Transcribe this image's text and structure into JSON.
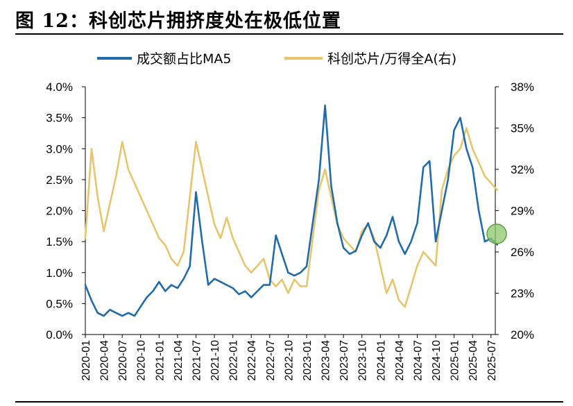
{
  "figure": {
    "title": "图 12：科创芯片拥挤度处在极低位置"
  },
  "chart_data": {
    "type": "line",
    "legend_position": "top",
    "grid": false,
    "x_ticks": [
      "2020-01",
      "2020-04",
      "2020-07",
      "2020-10",
      "2021-01",
      "2021-04",
      "2021-07",
      "2021-10",
      "2022-01",
      "2022-04",
      "2022-07",
      "2022-10",
      "2023-01",
      "2023-04",
      "2023-07",
      "2023-10",
      "2024-01",
      "2024-04",
      "2024-07",
      "2024-10",
      "2025-01",
      "2025-04",
      "2025-07"
    ],
    "y_left": {
      "ylim": [
        0.0,
        4.0
      ],
      "ticks": [
        "0.0%",
        "0.5%",
        "1.0%",
        "1.5%",
        "2.0%",
        "2.5%",
        "3.0%",
        "3.5%",
        "4.0%"
      ]
    },
    "y_right": {
      "ylim": [
        20,
        38
      ],
      "ticks": [
        "20%",
        "23%",
        "26%",
        "29%",
        "32%",
        "35%",
        "38%"
      ]
    },
    "series": [
      {
        "name": "成交额占比MA5",
        "axis": "left",
        "color": "#1f6bac",
        "points": [
          [
            "2020-01",
            0.8
          ],
          [
            "2020-02",
            0.55
          ],
          [
            "2020-03",
            0.35
          ],
          [
            "2020-04",
            0.3
          ],
          [
            "2020-05",
            0.4
          ],
          [
            "2020-06",
            0.35
          ],
          [
            "2020-07",
            0.3
          ],
          [
            "2020-08",
            0.35
          ],
          [
            "2020-09",
            0.3
          ],
          [
            "2020-10",
            0.45
          ],
          [
            "2020-11",
            0.6
          ],
          [
            "2020-12",
            0.7
          ],
          [
            "2021-01",
            0.85
          ],
          [
            "2021-02",
            0.7
          ],
          [
            "2021-03",
            0.8
          ],
          [
            "2021-04",
            0.75
          ],
          [
            "2021-05",
            0.9
          ],
          [
            "2021-06",
            1.1
          ],
          [
            "2021-07",
            2.3
          ],
          [
            "2021-08",
            1.5
          ],
          [
            "2021-09",
            0.8
          ],
          [
            "2021-10",
            0.9
          ],
          [
            "2021-11",
            0.85
          ],
          [
            "2021-12",
            0.8
          ],
          [
            "2022-01",
            0.75
          ],
          [
            "2022-02",
            0.65
          ],
          [
            "2022-03",
            0.7
          ],
          [
            "2022-04",
            0.6
          ],
          [
            "2022-05",
            0.7
          ],
          [
            "2022-06",
            0.8
          ],
          [
            "2022-07",
            0.8
          ],
          [
            "2022-08",
            1.6
          ],
          [
            "2022-09",
            1.3
          ],
          [
            "2022-10",
            1.0
          ],
          [
            "2022-11",
            0.95
          ],
          [
            "2022-12",
            1.0
          ],
          [
            "2023-01",
            1.1
          ],
          [
            "2023-02",
            1.8
          ],
          [
            "2023-03",
            2.5
          ],
          [
            "2023-04",
            3.7
          ],
          [
            "2023-05",
            2.4
          ],
          [
            "2023-06",
            1.8
          ],
          [
            "2023-07",
            1.4
          ],
          [
            "2023-08",
            1.3
          ],
          [
            "2023-09",
            1.35
          ],
          [
            "2023-10",
            1.6
          ],
          [
            "2023-11",
            1.8
          ],
          [
            "2023-12",
            1.5
          ],
          [
            "2024-01",
            1.4
          ],
          [
            "2024-02",
            1.6
          ],
          [
            "2024-03",
            1.9
          ],
          [
            "2024-04",
            1.5
          ],
          [
            "2024-05",
            1.3
          ],
          [
            "2024-06",
            1.5
          ],
          [
            "2024-07",
            1.8
          ],
          [
            "2024-08",
            2.7
          ],
          [
            "2024-09",
            2.8
          ],
          [
            "2024-10",
            1.5
          ],
          [
            "2024-11",
            2.0
          ],
          [
            "2024-12",
            2.5
          ],
          [
            "2025-01",
            3.3
          ],
          [
            "2025-02",
            3.5
          ],
          [
            "2025-03",
            3.0
          ],
          [
            "2025-04",
            2.7
          ],
          [
            "2025-05",
            2.0
          ],
          [
            "2025-06",
            1.5
          ],
          [
            "2025-07",
            1.55
          ],
          [
            "2025-08",
            1.45
          ]
        ]
      },
      {
        "name": "科创芯片/万得全A(右)",
        "axis": "right",
        "color": "#e8c56a",
        "points": [
          [
            "2020-01",
            27.0
          ],
          [
            "2020-02",
            33.5
          ],
          [
            "2020-03",
            30.0
          ],
          [
            "2020-04",
            27.5
          ],
          [
            "2020-05",
            29.5
          ],
          [
            "2020-06",
            31.5
          ],
          [
            "2020-07",
            34.0
          ],
          [
            "2020-08",
            32.0
          ],
          [
            "2020-09",
            31.0
          ],
          [
            "2020-10",
            30.0
          ],
          [
            "2020-11",
            29.0
          ],
          [
            "2020-12",
            28.0
          ],
          [
            "2021-01",
            27.0
          ],
          [
            "2021-02",
            26.5
          ],
          [
            "2021-03",
            25.5
          ],
          [
            "2021-04",
            25.0
          ],
          [
            "2021-05",
            26.0
          ],
          [
            "2021-06",
            30.0
          ],
          [
            "2021-07",
            34.0
          ],
          [
            "2021-08",
            32.0
          ],
          [
            "2021-09",
            30.0
          ],
          [
            "2021-10",
            28.0
          ],
          [
            "2021-11",
            27.0
          ],
          [
            "2021-12",
            28.5
          ],
          [
            "2022-01",
            27.0
          ],
          [
            "2022-02",
            26.0
          ],
          [
            "2022-03",
            25.0
          ],
          [
            "2022-04",
            24.5
          ],
          [
            "2022-05",
            25.0
          ],
          [
            "2022-06",
            25.5
          ],
          [
            "2022-07",
            24.0
          ],
          [
            "2022-08",
            23.5
          ],
          [
            "2022-09",
            24.0
          ],
          [
            "2022-10",
            23.0
          ],
          [
            "2022-11",
            24.0
          ],
          [
            "2022-12",
            23.5
          ],
          [
            "2023-01",
            23.5
          ],
          [
            "2023-02",
            27.0
          ],
          [
            "2023-03",
            30.5
          ],
          [
            "2023-04",
            32.0
          ],
          [
            "2023-05",
            30.0
          ],
          [
            "2023-06",
            28.0
          ],
          [
            "2023-07",
            27.0
          ],
          [
            "2023-08",
            26.5
          ],
          [
            "2023-09",
            26.0
          ],
          [
            "2023-10",
            27.5
          ],
          [
            "2023-11",
            28.0
          ],
          [
            "2023-12",
            27.0
          ],
          [
            "2024-01",
            25.0
          ],
          [
            "2024-02",
            23.0
          ],
          [
            "2024-03",
            24.0
          ],
          [
            "2024-04",
            22.5
          ],
          [
            "2024-05",
            22.0
          ],
          [
            "2024-06",
            23.5
          ],
          [
            "2024-07",
            25.0
          ],
          [
            "2024-08",
            26.0
          ],
          [
            "2024-09",
            25.5
          ],
          [
            "2024-10",
            25.0
          ],
          [
            "2024-11",
            30.5
          ],
          [
            "2024-12",
            32.0
          ],
          [
            "2025-01",
            33.0
          ],
          [
            "2025-02",
            33.5
          ],
          [
            "2025-03",
            35.0
          ],
          [
            "2025-04",
            33.5
          ],
          [
            "2025-05",
            32.5
          ],
          [
            "2025-06",
            31.5
          ],
          [
            "2025-07",
            31.0
          ],
          [
            "2025-08",
            30.5
          ]
        ]
      }
    ]
  }
}
